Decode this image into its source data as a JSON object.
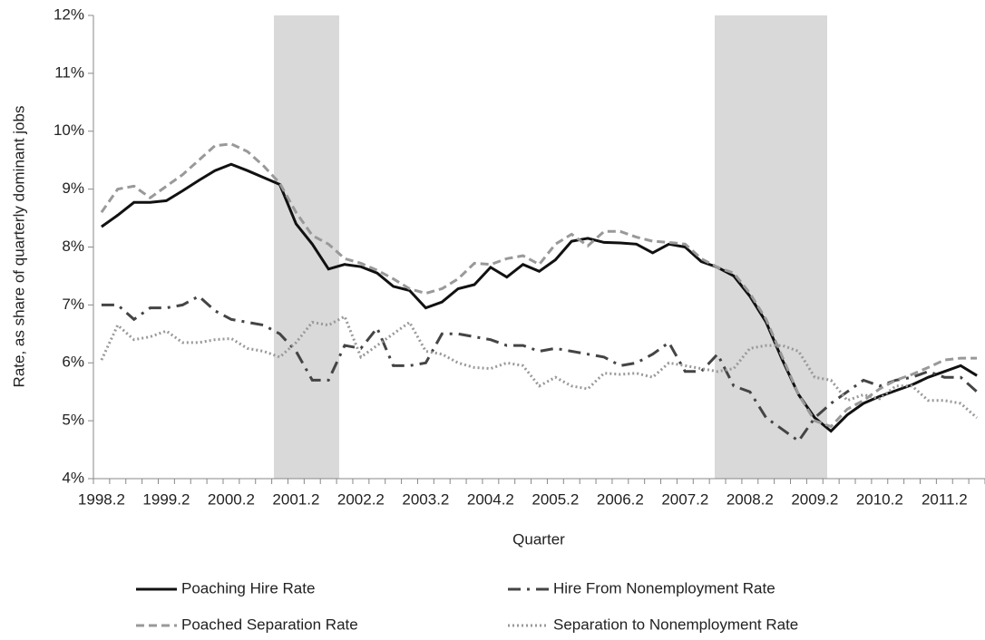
{
  "chart_data": {
    "type": "line",
    "x_label": "Quarter",
    "y_label": "Rate, as share of quarterly dominant jobs",
    "categories": [
      "1998.2",
      null,
      null,
      null,
      "1999.2",
      null,
      null,
      null,
      "2000.2",
      null,
      null,
      null,
      "2001.2",
      null,
      null,
      null,
      "2002.2",
      null,
      null,
      null,
      "2003.2",
      null,
      null,
      null,
      "2004.2",
      null,
      null,
      null,
      "2005.2",
      null,
      null,
      null,
      "2006.2",
      null,
      null,
      null,
      "2007.2",
      null,
      null,
      null,
      "2008.2",
      null,
      null,
      null,
      "2009.2",
      null,
      null,
      null,
      "2010.2",
      null,
      null,
      null,
      "2011.2",
      null,
      null
    ],
    "ylim": [
      4,
      12
    ],
    "yticks": [
      {
        "value": 4,
        "label": "4%"
      },
      {
        "value": 5,
        "label": "5%"
      },
      {
        "value": 6,
        "label": "6%"
      },
      {
        "value": 7,
        "label": "7%"
      },
      {
        "value": 8,
        "label": "8%"
      },
      {
        "value": 9,
        "label": "9%"
      },
      {
        "value": 10,
        "label": "10%"
      },
      {
        "value": 11,
        "label": "11%"
      },
      {
        "value": 12,
        "label": "12%"
      }
    ],
    "series": [
      {
        "name": "Poaching Hire Rate",
        "color": "#111111",
        "dash": "solid",
        "values": [
          8.35,
          8.55,
          8.77,
          8.77,
          8.8,
          8.97,
          9.15,
          9.32,
          9.43,
          9.32,
          9.2,
          9.08,
          8.4,
          8.05,
          7.62,
          7.7,
          7.66,
          7.55,
          7.32,
          7.25,
          6.95,
          7.05,
          7.28,
          7.35,
          7.65,
          7.48,
          7.7,
          7.58,
          7.78,
          8.1,
          8.15,
          8.08,
          8.07,
          8.05,
          7.9,
          8.05,
          8.0,
          7.75,
          7.65,
          7.5,
          7.15,
          6.7,
          6.05,
          5.45,
          5.05,
          4.82,
          5.1,
          5.3,
          5.42,
          5.52,
          5.62,
          5.75,
          5.85,
          5.95,
          5.78
        ]
      },
      {
        "name": "Hire From Nonemployment Rate",
        "color": "#444444",
        "dash": "dashdot",
        "values": [
          7.0,
          7.0,
          6.75,
          6.95,
          6.95,
          7.0,
          7.15,
          6.9,
          6.75,
          6.7,
          6.65,
          6.5,
          6.2,
          5.7,
          5.7,
          6.3,
          6.25,
          6.6,
          5.95,
          5.95,
          6.0,
          6.5,
          6.5,
          6.45,
          6.4,
          6.3,
          6.3,
          6.2,
          6.25,
          6.2,
          6.15,
          6.1,
          5.95,
          6.0,
          6.15,
          6.35,
          5.85,
          5.85,
          6.15,
          5.6,
          5.5,
          5.05,
          4.85,
          4.65,
          5.05,
          5.3,
          5.5,
          5.7,
          5.6,
          5.7,
          5.75,
          5.85,
          5.75,
          5.75,
          5.5
        ]
      },
      {
        "name": "Poached Separation Rate",
        "color": "#999999",
        "dash": "dashed",
        "values": [
          8.6,
          9.0,
          9.05,
          8.85,
          9.05,
          9.25,
          9.5,
          9.75,
          9.78,
          9.65,
          9.4,
          9.1,
          8.6,
          8.2,
          8.05,
          7.8,
          7.72,
          7.6,
          7.45,
          7.28,
          7.2,
          7.28,
          7.45,
          7.72,
          7.7,
          7.8,
          7.85,
          7.7,
          8.05,
          8.22,
          8.02,
          8.27,
          8.27,
          8.17,
          8.1,
          8.08,
          8.05,
          7.8,
          7.65,
          7.55,
          7.2,
          6.75,
          6.1,
          5.45,
          5.0,
          4.9,
          5.2,
          5.35,
          5.55,
          5.7,
          5.8,
          5.92,
          6.05,
          6.08,
          6.08
        ]
      },
      {
        "name": "Separation to Nonemployment Rate",
        "color": "#999999",
        "dash": "dotted",
        "values": [
          6.05,
          6.65,
          6.4,
          6.45,
          6.55,
          6.35,
          6.35,
          6.4,
          6.42,
          6.25,
          6.2,
          6.1,
          6.35,
          6.7,
          6.65,
          6.8,
          6.1,
          6.3,
          6.5,
          6.7,
          6.2,
          6.15,
          6.0,
          5.92,
          5.9,
          6.0,
          5.95,
          5.6,
          5.75,
          5.6,
          5.55,
          5.82,
          5.8,
          5.82,
          5.75,
          6.0,
          5.95,
          5.9,
          5.85,
          5.9,
          6.25,
          6.3,
          6.3,
          6.2,
          5.75,
          5.7,
          5.35,
          5.45,
          5.38,
          5.6,
          5.6,
          5.35,
          5.35,
          5.3,
          5.05
        ]
      }
    ]
  }
}
